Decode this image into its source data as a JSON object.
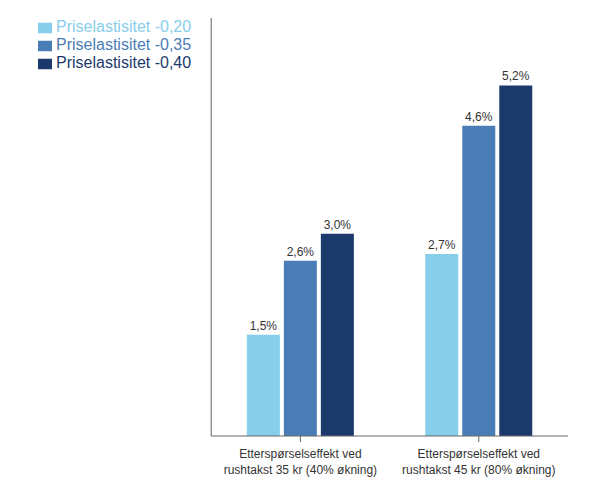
{
  "chart_data": {
    "type": "bar",
    "categories": [
      "Etterspørselseffekt ved\nrushtakst 35 kr (40% økning)",
      "Etterspørselseffekt ved\nrushtakst 45 kr (80% økning)"
    ],
    "series": [
      {
        "name": "Priselastisitet -0,20",
        "color": "#87ceeb",
        "values": [
          1.5,
          2.7
        ],
        "value_labels": [
          "1,5%",
          "2,7%"
        ]
      },
      {
        "name": "Priselastisitet -0,35",
        "color": "#4a7db5",
        "values": [
          2.6,
          4.6
        ],
        "value_labels": [
          "2,6%",
          "4,6%"
        ]
      },
      {
        "name": "Priselastisitet -0,40",
        "color": "#1b3a6b",
        "values": [
          3.0,
          5.2
        ],
        "value_labels": [
          "3,0%",
          "5,2%"
        ]
      }
    ],
    "ylim": [
      0,
      6.2
    ],
    "grid": false,
    "legend": "upper left",
    "data_labels": true,
    "tick_labels": "x"
  }
}
